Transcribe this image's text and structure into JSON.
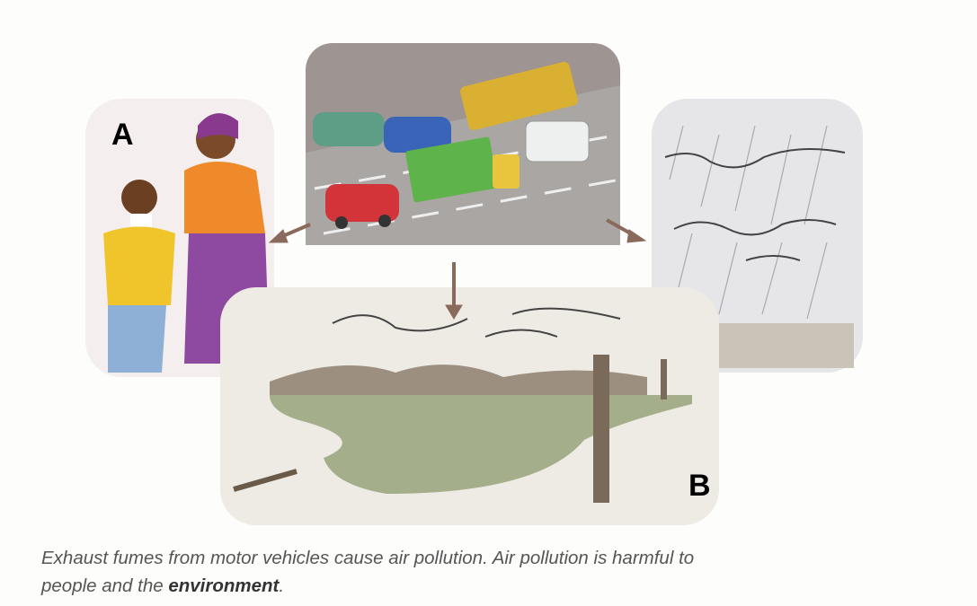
{
  "labels": {
    "a": "A",
    "b": "B"
  },
  "caption": {
    "line1": "Exhaust fumes from motor vehicles cause air pollution. Air pollution is harmful to",
    "line2": "people and the ",
    "bold": "environment",
    "end": "."
  }
}
